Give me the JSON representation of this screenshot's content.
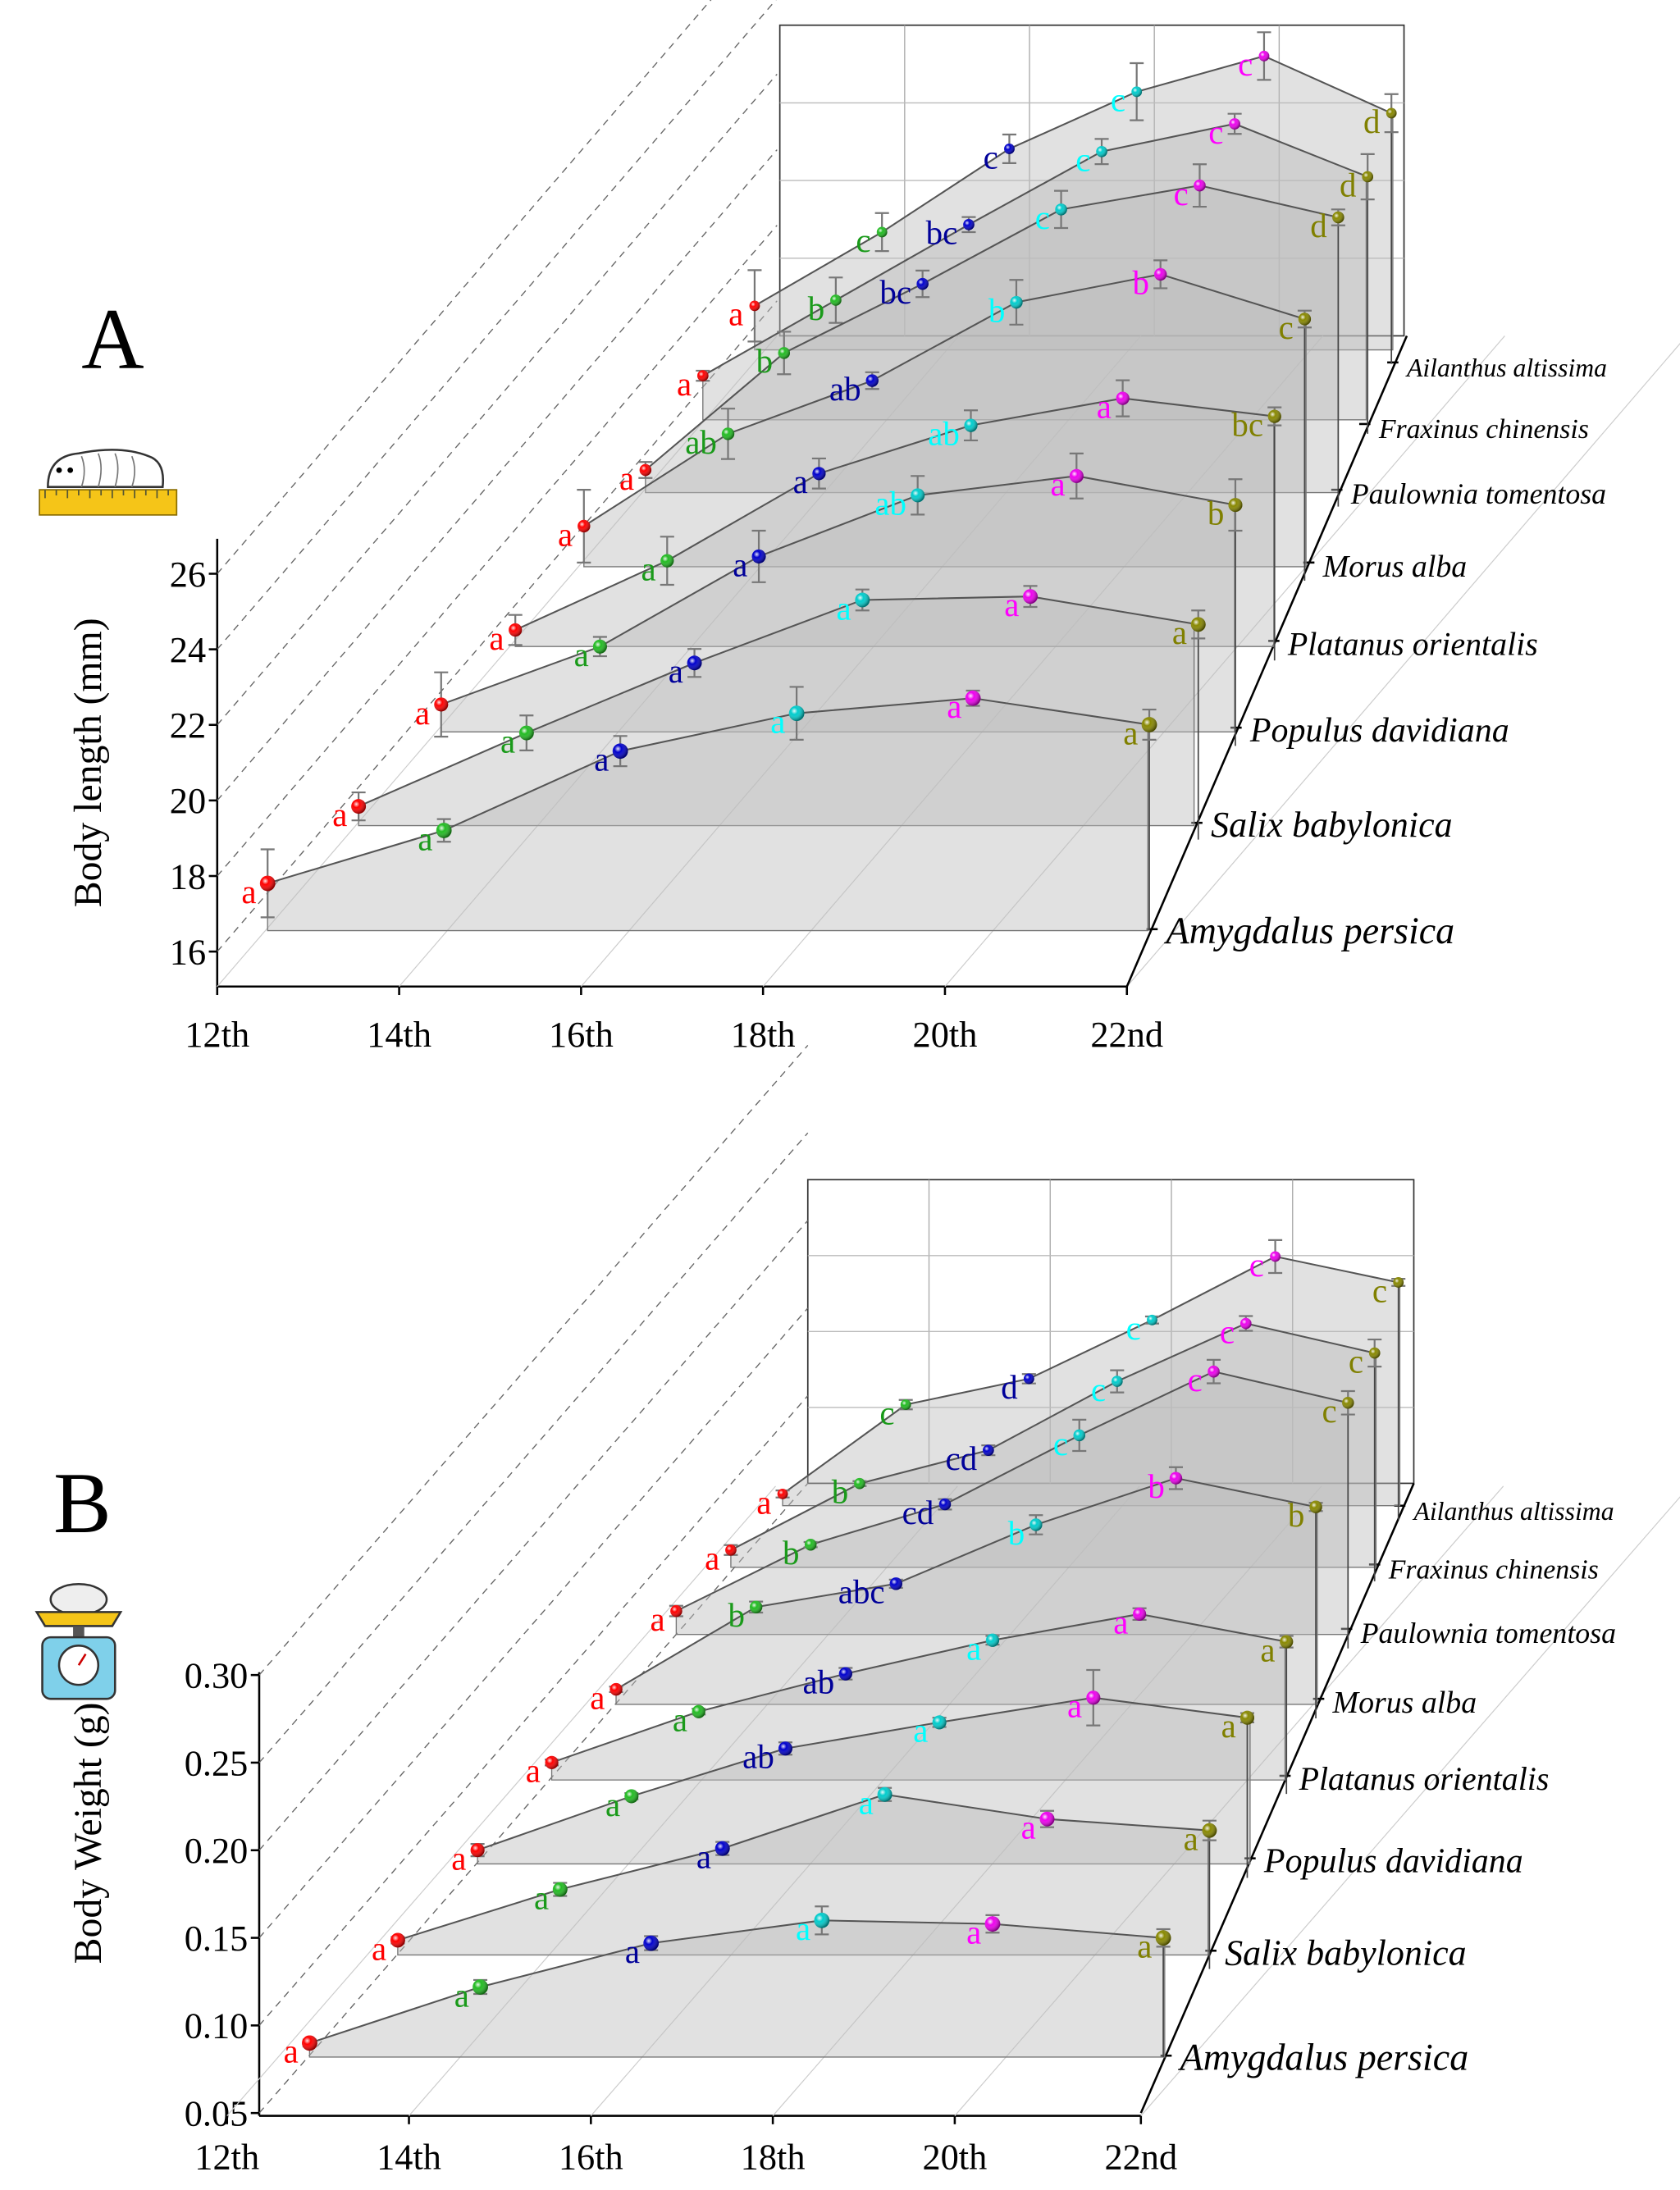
{
  "instar_colors": [
    "#ff0000",
    "#22bb22",
    "#0000cc",
    "#00cccc",
    "#ee00ee",
    "#888800"
  ],
  "letter_colors": [
    "#ff0000",
    "#1a9a1a",
    "#000099",
    "#00ffff",
    "#ff00ff",
    "#808000"
  ],
  "chart_data": [
    {
      "type": "line",
      "panel": "A",
      "ylabel": "Body length (mm)",
      "yticks": [
        "16",
        "18",
        "20",
        "22",
        "24",
        "26"
      ],
      "ylim": [
        16,
        26
      ],
      "categories": [
        "12th",
        "14th",
        "16th",
        "18th",
        "20th",
        "22nd"
      ],
      "species": [
        "Amygdalus persica",
        "Salix babylonica",
        "Populus davidiana",
        "Platanus orientalis",
        "Morus alba",
        "Paulownia tomentosa",
        "Fraxinus chinensis",
        "Ailanthus altissima"
      ],
      "series": [
        {
          "name": "Amygdalus persica",
          "values": [
            17.8,
            19.2,
            21.3,
            22.3,
            22.7,
            22.0
          ],
          "errors": [
            0.9,
            0.3,
            0.4,
            0.7,
            0.2,
            0.4
          ],
          "letters": [
            "a",
            "a",
            "a",
            "a",
            "a",
            "a"
          ]
        },
        {
          "name": "Salix babylonica",
          "values": [
            17.1,
            19.2,
            21.2,
            23.0,
            23.1,
            22.3
          ],
          "errors": [
            0.4,
            0.5,
            0.4,
            0.3,
            0.3,
            0.4
          ],
          "letters": [
            "a",
            "a",
            "a",
            "a",
            "a",
            "a"
          ]
        },
        {
          "name": "Populus davidiana",
          "values": [
            17.4,
            19.2,
            22.0,
            23.9,
            24.5,
            23.6
          ],
          "errors": [
            1.0,
            0.3,
            0.8,
            0.6,
            0.7,
            0.8
          ],
          "letters": [
            "a",
            "a",
            "a",
            "ab",
            "a",
            "b"
          ]
        },
        {
          "name": "Platanus orientalis",
          "values": [
            17.1,
            19.4,
            22.3,
            23.9,
            24.8,
            24.2
          ],
          "errors": [
            0.5,
            0.8,
            0.5,
            0.5,
            0.6,
            0.3
          ],
          "letters": [
            "a",
            "a",
            "a",
            "ab",
            "a",
            "bc"
          ]
        },
        {
          "name": "Morus alba",
          "values": [
            18.0,
            21.3,
            23.2,
            26.0,
            27.0,
            25.4
          ],
          "errors": [
            1.3,
            0.9,
            0.3,
            0.8,
            0.5,
            0.3
          ],
          "letters": [
            "a",
            "ab",
            "ab",
            "b",
            "b",
            "c"
          ]
        },
        {
          "name": "Paulownia tomentosa",
          "values": [
            17.4,
            21.8,
            24.4,
            27.2,
            28.1,
            26.9
          ],
          "errors": [
            0.3,
            0.8,
            0.5,
            0.7,
            0.8,
            0.3
          ],
          "letters": [
            "a",
            "b",
            "bc",
            "c",
            "c",
            "d"
          ]
        },
        {
          "name": "Fraxinus chinensis",
          "values": [
            18.3,
            21.3,
            24.3,
            27.2,
            28.3,
            26.2
          ],
          "errors": [
            0.2,
            0.9,
            0.3,
            0.5,
            0.4,
            0.9
          ],
          "letters": [
            "a",
            "b",
            "bc",
            "c",
            "c",
            "d"
          ]
        },
        {
          "name": "Ailanthus altissima",
          "values": [
            18.4,
            21.5,
            25.0,
            27.4,
            28.9,
            26.5
          ],
          "errors": [
            1.5,
            0.8,
            0.6,
            1.2,
            1.0,
            0.8
          ],
          "letters": [
            "a",
            "c",
            "c",
            "c",
            "c",
            "d"
          ]
        }
      ]
    },
    {
      "type": "line",
      "panel": "B",
      "ylabel": "Body Weight (g)",
      "yticks": [
        "0.05",
        "0.10",
        "0.15",
        "0.20",
        "0.25",
        "0.30"
      ],
      "ylim": [
        0.05,
        0.3
      ],
      "categories": [
        "12th",
        "14th",
        "16th",
        "18th",
        "20th",
        "22nd"
      ],
      "species": [
        "Amygdalus persica",
        "Salix babylonica",
        "Populus davidiana",
        "Platanus orientalis",
        "Morus alba",
        "Paulownia tomentosa",
        "Fraxinus chinensis",
        "Ailanthus altissima"
      ],
      "series": [
        {
          "name": "Amygdalus persica",
          "values": [
            0.09,
            0.122,
            0.147,
            0.16,
            0.158,
            0.15
          ],
          "errors": [
            0.002,
            0.004,
            0.004,
            0.008,
            0.005,
            0.005
          ],
          "letters": [
            "a",
            "a",
            "a",
            "a",
            "a",
            "a"
          ]
        },
        {
          "name": "Salix babylonica",
          "values": [
            0.091,
            0.122,
            0.147,
            0.18,
            0.165,
            0.158
          ],
          "errors": [
            0.002,
            0.004,
            0.004,
            0.004,
            0.005,
            0.006
          ],
          "letters": [
            "a",
            "a",
            "a",
            "a",
            "a",
            "a"
          ]
        },
        {
          "name": "Populus davidiana",
          "values": [
            0.091,
            0.126,
            0.157,
            0.174,
            0.19,
            0.177
          ],
          "errors": [
            0.004,
            0.002,
            0.004,
            0.003,
            0.018,
            0.003
          ],
          "letters": [
            "a",
            "a",
            "ab",
            "a",
            "a",
            "a"
          ]
        },
        {
          "name": "Platanus orientalis",
          "values": [
            0.094,
            0.129,
            0.155,
            0.178,
            0.196,
            0.177
          ],
          "errors": [
            0.002,
            0.002,
            0.004,
            0.003,
            0.004,
            0.004
          ],
          "letters": [
            "a",
            "a",
            "ab",
            "a",
            "a",
            "a"
          ]
        },
        {
          "name": "Morus alba",
          "values": [
            0.093,
            0.153,
            0.17,
            0.213,
            0.247,
            0.226
          ],
          "errors": [
            0.002,
            0.004,
            0.003,
            0.007,
            0.008,
            0.003
          ],
          "letters": [
            "a",
            "b",
            "abc",
            "b",
            "b",
            "b"
          ]
        },
        {
          "name": "Paulownia tomentosa",
          "values": [
            0.1,
            0.151,
            0.182,
            0.235,
            0.284,
            0.26
          ],
          "errors": [
            0.004,
            0.002,
            0.004,
            0.012,
            0.009,
            0.009
          ],
          "letters": [
            "a",
            "b",
            "cd",
            "c",
            "c",
            "c"
          ]
        },
        {
          "name": "Fraxinus chinensis",
          "values": [
            0.096,
            0.15,
            0.177,
            0.233,
            0.28,
            0.256
          ],
          "errors": [
            0.004,
            0.002,
            0.004,
            0.009,
            0.006,
            0.011
          ],
          "letters": [
            "a",
            "b",
            "cd",
            "c",
            "c",
            "c"
          ]
        },
        {
          "name": "Ailanthus altissima",
          "values": [
            0.092,
            0.168,
            0.19,
            0.24,
            0.294,
            0.272
          ],
          "errors": [
            0.003,
            0.004,
            0.004,
            0.003,
            0.014,
            0.003
          ],
          "letters": [
            "a",
            "c",
            "d",
            "c",
            "c",
            "c"
          ]
        }
      ]
    }
  ]
}
